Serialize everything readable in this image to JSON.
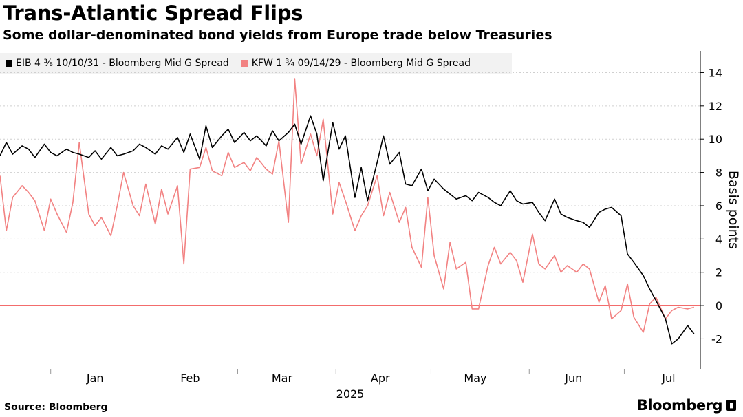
{
  "header": {
    "title": "Trans-Atlantic Spread Flips",
    "subtitle": "Some dollar-denominated bond yields from Europe trade below Treasuries"
  },
  "footer": {
    "source": "Source: Bloomberg",
    "brand": "Bloomberg"
  },
  "colors": {
    "eib": "#000000",
    "kfw": "#f28282",
    "zero_line": "#ef3b3b",
    "grid": "#cfcfcf",
    "legend_bg": "#f2f2f2"
  },
  "chart_data": {
    "type": "line",
    "ylabel": "Basis points",
    "y_axis_side": "right",
    "ylim": [
      -3.8,
      15.3
    ],
    "y_ticks": [
      -2,
      0,
      2,
      4,
      6,
      8,
      10,
      12,
      14
    ],
    "x_range": [
      "2024-12-16",
      "2025-07-25"
    ],
    "x_ticks": [
      {
        "label": "Jan",
        "date": "2025-01-15"
      },
      {
        "label": "Feb",
        "date": "2025-02-14"
      },
      {
        "label": "Mar",
        "date": "2025-03-15"
      },
      {
        "label": "Apr",
        "date": "2025-04-15"
      },
      {
        "label": "May",
        "date": "2025-05-15"
      },
      {
        "label": "Jun",
        "date": "2025-06-15"
      },
      {
        "label": "Jul",
        "date": "2025-07-15"
      }
    ],
    "month_boundaries": [
      "2025-01-01",
      "2025-02-01",
      "2025-03-01",
      "2025-04-01",
      "2025-05-01",
      "2025-06-01",
      "2025-07-01"
    ],
    "year_label": "2025",
    "grid": "horizontal dashed",
    "reference_line": 0,
    "series": [
      {
        "name": "EIB 4 ⅜ 10/10/31 - Bloomberg Mid G Spread",
        "legend_text": "EIB 4 ⅜ 10/10/31 - Bloomberg Mid G Spread",
        "color": "#000000",
        "x": [
          "2024-12-16",
          "2024-12-18",
          "2024-12-20",
          "2024-12-23",
          "2024-12-25",
          "2024-12-27",
          "2024-12-30",
          "2025-01-01",
          "2025-01-03",
          "2025-01-06",
          "2025-01-08",
          "2025-01-10",
          "2025-01-13",
          "2025-01-15",
          "2025-01-17",
          "2025-01-20",
          "2025-01-22",
          "2025-01-24",
          "2025-01-27",
          "2025-01-29",
          "2025-01-31",
          "2025-02-03",
          "2025-02-05",
          "2025-02-07",
          "2025-02-10",
          "2025-02-12",
          "2025-02-14",
          "2025-02-17",
          "2025-02-19",
          "2025-02-21",
          "2025-02-24",
          "2025-02-26",
          "2025-02-28",
          "2025-03-03",
          "2025-03-05",
          "2025-03-07",
          "2025-03-10",
          "2025-03-12",
          "2025-03-14",
          "2025-03-17",
          "2025-03-19",
          "2025-03-21",
          "2025-03-24",
          "2025-03-26",
          "2025-03-28",
          "2025-03-31",
          "2025-04-02",
          "2025-04-04",
          "2025-04-07",
          "2025-04-09",
          "2025-04-11",
          "2025-04-14",
          "2025-04-16",
          "2025-04-18",
          "2025-04-21",
          "2025-04-23",
          "2025-04-25",
          "2025-04-28",
          "2025-04-30",
          "2025-05-02",
          "2025-05-05",
          "2025-05-07",
          "2025-05-09",
          "2025-05-12",
          "2025-05-14",
          "2025-05-16",
          "2025-05-19",
          "2025-05-21",
          "2025-05-23",
          "2025-05-26",
          "2025-05-28",
          "2025-05-30",
          "2025-06-02",
          "2025-06-04",
          "2025-06-06",
          "2025-06-09",
          "2025-06-11",
          "2025-06-13",
          "2025-06-16",
          "2025-06-18",
          "2025-06-20",
          "2025-06-23",
          "2025-06-25",
          "2025-06-27",
          "2025-06-30",
          "2025-07-02",
          "2025-07-04",
          "2025-07-07",
          "2025-07-09",
          "2025-07-11",
          "2025-07-14",
          "2025-07-16",
          "2025-07-18",
          "2025-07-21",
          "2025-07-23"
        ],
        "y": [
          9.0,
          9.8,
          9.1,
          9.6,
          9.4,
          8.9,
          9.7,
          9.2,
          9.0,
          9.4,
          9.2,
          9.1,
          8.9,
          9.3,
          8.8,
          9.5,
          9.0,
          9.1,
          9.3,
          9.7,
          9.5,
          9.1,
          9.6,
          9.4,
          10.1,
          9.2,
          10.3,
          8.8,
          10.8,
          9.5,
          10.2,
          10.6,
          9.8,
          10.4,
          9.9,
          10.2,
          9.6,
          10.5,
          9.9,
          10.4,
          10.9,
          9.7,
          11.4,
          10.3,
          7.5,
          11.0,
          9.4,
          10.2,
          6.5,
          8.3,
          6.3,
          8.6,
          10.2,
          8.5,
          9.2,
          7.3,
          7.2,
          8.2,
          6.9,
          7.6,
          7.0,
          6.7,
          6.4,
          6.6,
          6.3,
          6.8,
          6.5,
          6.2,
          6.0,
          6.9,
          6.3,
          6.1,
          6.2,
          5.6,
          5.1,
          6.4,
          5.5,
          5.3,
          5.1,
          5.0,
          4.7,
          5.6,
          5.8,
          5.9,
          5.4,
          3.1,
          2.6,
          1.8,
          1.0,
          0.3,
          -0.8,
          -2.3,
          -2.0,
          -1.2,
          -1.7
        ]
      },
      {
        "name": "KFW 1 ¾ 09/14/29 - Bloomberg Mid G Spread",
        "legend_text": "KFW 1 ¾ 09/14/29 - Bloomberg Mid G Spread",
        "color": "#f28282",
        "x": [
          "2024-12-16",
          "2024-12-18",
          "2024-12-20",
          "2024-12-23",
          "2024-12-25",
          "2024-12-27",
          "2024-12-30",
          "2025-01-01",
          "2025-01-03",
          "2025-01-06",
          "2025-01-08",
          "2025-01-10",
          "2025-01-13",
          "2025-01-15",
          "2025-01-17",
          "2025-01-20",
          "2025-01-22",
          "2025-01-24",
          "2025-01-27",
          "2025-01-29",
          "2025-01-31",
          "2025-02-03",
          "2025-02-05",
          "2025-02-07",
          "2025-02-10",
          "2025-02-12",
          "2025-02-14",
          "2025-02-17",
          "2025-02-19",
          "2025-02-21",
          "2025-02-24",
          "2025-02-26",
          "2025-02-28",
          "2025-03-03",
          "2025-03-05",
          "2025-03-07",
          "2025-03-10",
          "2025-03-12",
          "2025-03-14",
          "2025-03-17",
          "2025-03-19",
          "2025-03-21",
          "2025-03-24",
          "2025-03-26",
          "2025-03-28",
          "2025-03-31",
          "2025-04-02",
          "2025-04-04",
          "2025-04-07",
          "2025-04-09",
          "2025-04-11",
          "2025-04-14",
          "2025-04-16",
          "2025-04-18",
          "2025-04-21",
          "2025-04-23",
          "2025-04-25",
          "2025-04-28",
          "2025-04-30",
          "2025-05-02",
          "2025-05-05",
          "2025-05-07",
          "2025-05-09",
          "2025-05-12",
          "2025-05-14",
          "2025-05-16",
          "2025-05-19",
          "2025-05-21",
          "2025-05-23",
          "2025-05-26",
          "2025-05-28",
          "2025-05-30",
          "2025-06-02",
          "2025-06-04",
          "2025-06-06",
          "2025-06-09",
          "2025-06-11",
          "2025-06-13",
          "2025-06-16",
          "2025-06-18",
          "2025-06-20",
          "2025-06-23",
          "2025-06-25",
          "2025-06-27",
          "2025-06-30",
          "2025-07-02",
          "2025-07-04",
          "2025-07-07",
          "2025-07-09",
          "2025-07-11",
          "2025-07-14",
          "2025-07-16",
          "2025-07-18",
          "2025-07-21",
          "2025-07-23"
        ],
        "y": [
          7.8,
          4.5,
          6.5,
          7.2,
          6.8,
          6.3,
          4.5,
          6.4,
          5.5,
          4.4,
          6.2,
          9.8,
          5.5,
          4.8,
          5.3,
          4.2,
          6.0,
          8.0,
          6.0,
          5.4,
          7.3,
          4.9,
          7.0,
          5.5,
          7.2,
          2.5,
          8.2,
          8.3,
          9.5,
          8.1,
          7.8,
          9.2,
          8.3,
          8.6,
          8.1,
          8.9,
          8.2,
          7.9,
          9.9,
          5.0,
          13.6,
          8.5,
          10.3,
          9.0,
          11.2,
          5.5,
          7.4,
          6.3,
          4.5,
          5.4,
          6.0,
          7.8,
          5.4,
          6.8,
          5.0,
          5.9,
          3.5,
          2.3,
          6.5,
          3.0,
          1.0,
          3.8,
          2.2,
          2.6,
          -0.2,
          -0.2,
          2.4,
          3.5,
          2.5,
          3.2,
          2.7,
          1.4,
          4.3,
          2.5,
          2.2,
          3.0,
          2.0,
          2.4,
          2.0,
          2.5,
          2.2,
          0.2,
          1.2,
          -0.8,
          -0.3,
          1.3,
          -0.7,
          -1.6,
          0.1,
          0.5,
          -0.8,
          -0.3,
          -0.1,
          -0.2,
          -0.1
        ]
      }
    ]
  }
}
